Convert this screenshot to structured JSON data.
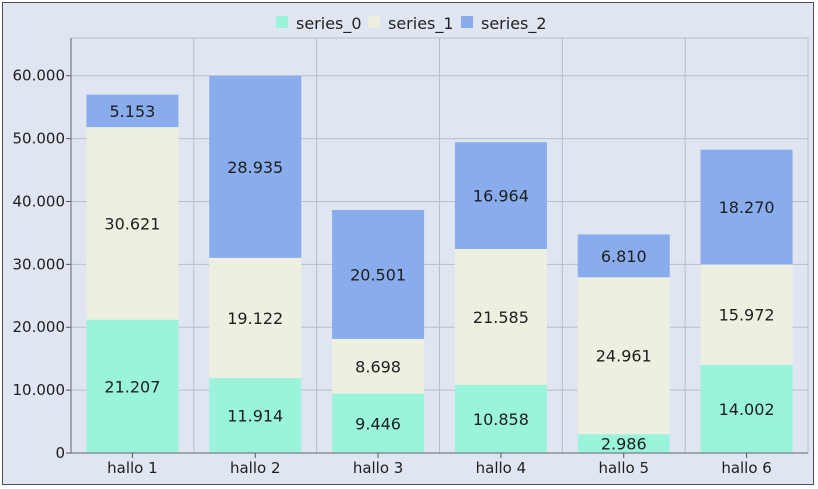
{
  "chart_data": {
    "type": "bar",
    "stacked": true,
    "title": "",
    "xlabel": "",
    "ylabel": "",
    "categories": [
      "hallo 1",
      "hallo 2",
      "hallo 3",
      "hallo 4",
      "hallo 5",
      "hallo 6"
    ],
    "series": [
      {
        "name": "series_0",
        "color": "#9af4dc",
        "values": [
          21207,
          11914,
          9446,
          10858,
          2986,
          14002
        ],
        "labels": [
          "21.207",
          "11.914",
          "9.446",
          "10.858",
          "2.986",
          "14.002"
        ]
      },
      {
        "name": "series_1",
        "color": "#edf0e1",
        "values": [
          30621,
          19122,
          8698,
          21585,
          24961,
          15972
        ],
        "labels": [
          "30.621",
          "19.122",
          "8.698",
          "21.585",
          "24.961",
          "15.972"
        ]
      },
      {
        "name": "series_2",
        "color": "#88acec",
        "values": [
          5153,
          28935,
          20501,
          16964,
          6810,
          18270
        ],
        "labels": [
          "5.153",
          "28.935",
          "20.501",
          "16.964",
          "6.810",
          "18.270"
        ]
      }
    ],
    "yticks": [
      0,
      10000,
      20000,
      30000,
      40000,
      50000,
      60000
    ],
    "ytick_labels": [
      "0",
      "10.000",
      "20.000",
      "30.000",
      "40.000",
      "50.000",
      "60.000"
    ],
    "ylim": [
      0,
      66000
    ],
    "grid": true,
    "legend_position": "top-center"
  }
}
